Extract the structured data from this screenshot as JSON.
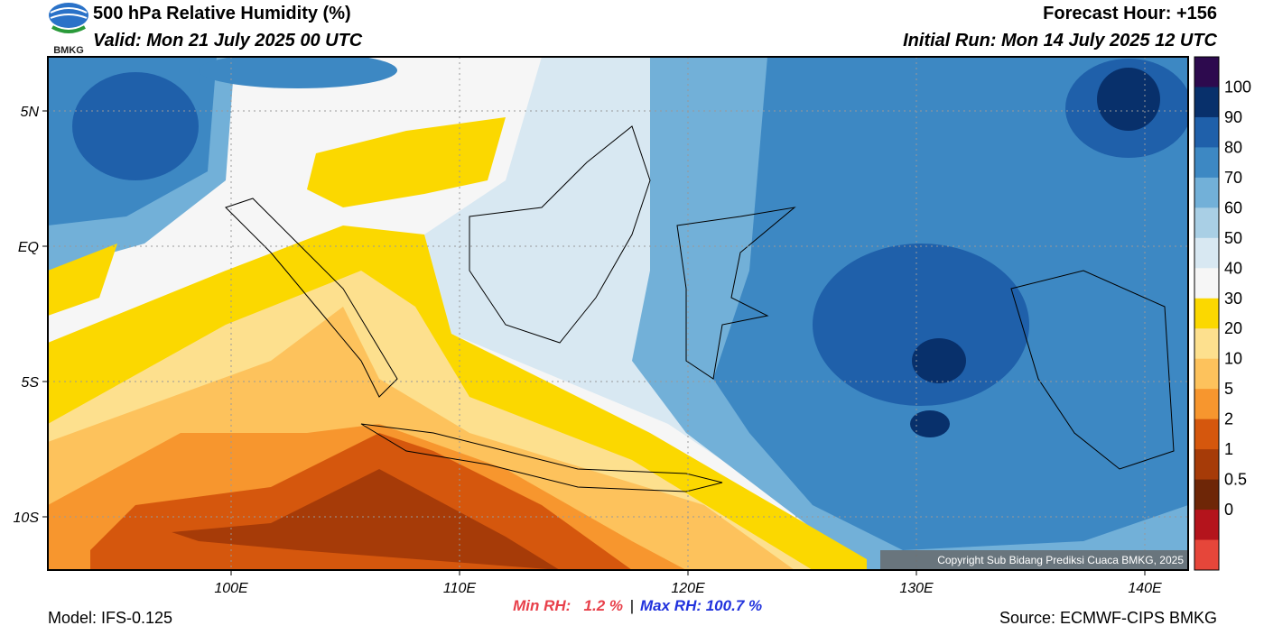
{
  "header": {
    "title": "500 hPa Relative Humidity (%)",
    "valid": "Valid: Mon 21 July 2025 00 UTC",
    "forecast_hour": "Forecast Hour: +156",
    "initial_run": "Initial Run: Mon 14 July 2025 12 UTC",
    "logo": "BMKG"
  },
  "map": {
    "lat_labels": [
      "5N",
      "EQ",
      "5S",
      "10S"
    ],
    "lon_labels": [
      "100E",
      "110E",
      "120E",
      "130E",
      "140E"
    ],
    "copyright": "Copyright Sub Bidang Prediksi Cuaca BMKG, 2025"
  },
  "colorbar": {
    "labels": [
      100,
      90,
      80,
      70,
      60,
      50,
      40,
      30,
      20,
      10,
      5,
      2,
      1,
      0.5,
      0
    ],
    "colors": [
      "#2d0a4e",
      "#08306b",
      "#1f60aa",
      "#3d88c3",
      "#72b0d8",
      "#a9cfe5",
      "#d8e8f2",
      "#f6f6f6",
      "#fbd800",
      "#fde08e",
      "#fdc25c",
      "#f7962e",
      "#d5570d",
      "#a63b08",
      "#6e2607",
      "#b4141c",
      "#e6463a"
    ]
  },
  "footer": {
    "model": "Model: IFS-0.125",
    "min_rh": "Min RH:   1.2 %",
    "separator": "|",
    "max_rh": "Max RH: 100.7 %",
    "source": "Source: ECMWF-CIPS BMKG"
  }
}
